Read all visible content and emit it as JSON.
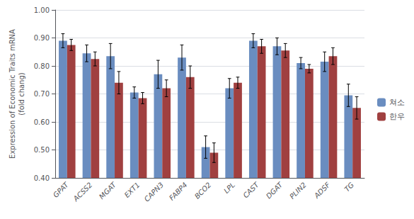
{
  "chart_data": {
    "type": "bar",
    "categories": [
      "GPAT",
      "ACSS2",
      "MGAT",
      "EXT1",
      "CAPN3",
      "FABP4",
      "BCO2",
      "LPL",
      "CAST",
      "DGAT",
      "PLIN2",
      "ADSF",
      "TG"
    ],
    "series": [
      {
        "name": "쳐소",
        "color": "#6a8dc0",
        "values": [
          0.89,
          0.845,
          0.835,
          0.705,
          0.77,
          0.83,
          0.51,
          0.72,
          0.89,
          0.87,
          0.81,
          0.815,
          0.695
        ],
        "errors": [
          0.025,
          0.03,
          0.045,
          0.02,
          0.05,
          0.045,
          0.04,
          0.035,
          0.025,
          0.03,
          0.02,
          0.035,
          0.04
        ]
      },
      {
        "name": "한우",
        "color": "#a04040",
        "values": [
          0.875,
          0.825,
          0.74,
          0.685,
          0.72,
          0.76,
          0.49,
          0.74,
          0.87,
          0.855,
          0.79,
          0.835,
          0.65
        ],
        "errors": [
          0.02,
          0.025,
          0.04,
          0.02,
          0.03,
          0.04,
          0.035,
          0.02,
          0.025,
          0.025,
          0.015,
          0.03,
          0.04
        ]
      }
    ],
    "ylabel": "Expression of Economic Traits mRNA\n(fold chang)",
    "ylim": [
      0.4,
      1.0
    ],
    "yticks": [
      {
        "value": 0.4,
        "label": "0.40"
      },
      {
        "value": 0.5,
        "label": "0.50"
      },
      {
        "value": 0.6,
        "label": "0.60"
      },
      {
        "value": 0.7,
        "label": "0.70"
      },
      {
        "value": 0.8,
        "label": "0.80"
      },
      {
        "value": 0.9,
        "label": "0.90"
      },
      {
        "value": 1.0,
        "label": "1.00"
      }
    ],
    "grid": true,
    "legend": "right"
  }
}
